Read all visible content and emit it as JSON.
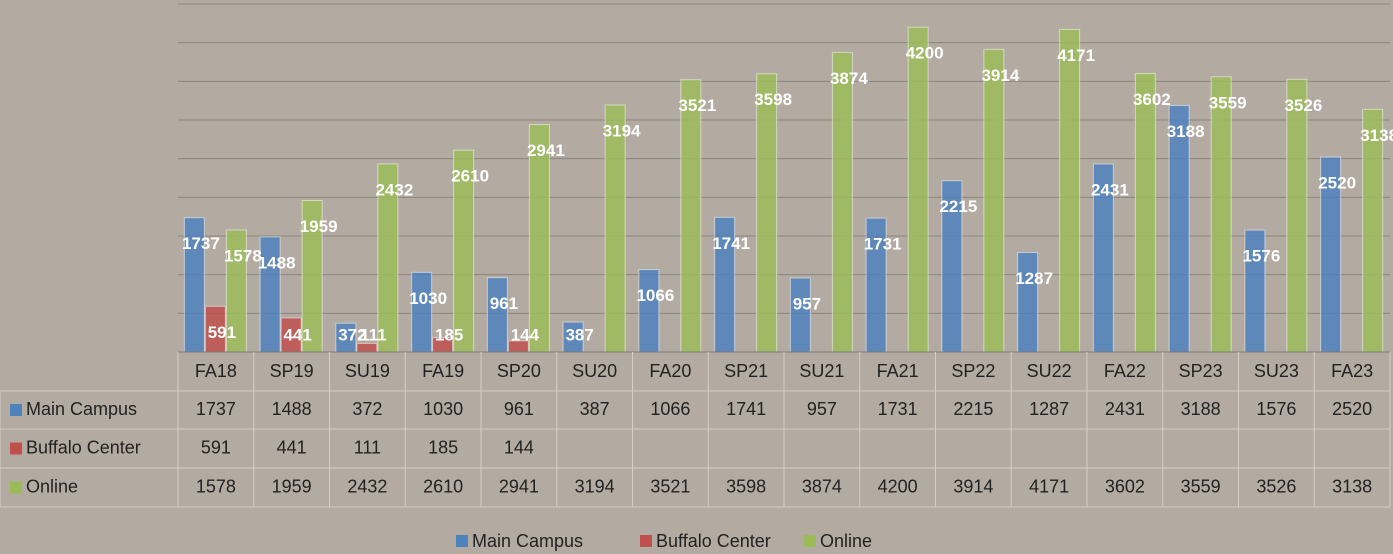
{
  "chart_data": {
    "type": "bar",
    "categories": [
      "FA18",
      "SP19",
      "SU19",
      "FA19",
      "SP20",
      "SU20",
      "FA20",
      "SP21",
      "SU21",
      "FA21",
      "SP22",
      "SU22",
      "FA22",
      "SP23",
      "SU23",
      "FA23"
    ],
    "series": [
      {
        "name": "Main Campus",
        "color": "#4f81bd",
        "values": [
          1737,
          1488,
          372,
          1030,
          961,
          387,
          1066,
          1741,
          957,
          1731,
          2215,
          1287,
          2431,
          3188,
          1576,
          2520
        ]
      },
      {
        "name": "Buffalo Center",
        "color": "#c0504d",
        "values": [
          591,
          441,
          111,
          185,
          144,
          null,
          null,
          null,
          null,
          null,
          null,
          null,
          null,
          null,
          null,
          null
        ]
      },
      {
        "name": "Online",
        "color": "#9bbb59",
        "values": [
          1578,
          1959,
          2432,
          2610,
          2941,
          3194,
          3521,
          3598,
          3874,
          4200,
          3914,
          4171,
          3602,
          3559,
          3526,
          3138
        ]
      }
    ],
    "ylim": [
      0,
      4500
    ],
    "yticks": [
      0,
      500,
      1000,
      1500,
      2000,
      2500,
      3000,
      3500,
      4000,
      4500
    ],
    "grid": true,
    "legend": "bottom",
    "data_table": true
  }
}
